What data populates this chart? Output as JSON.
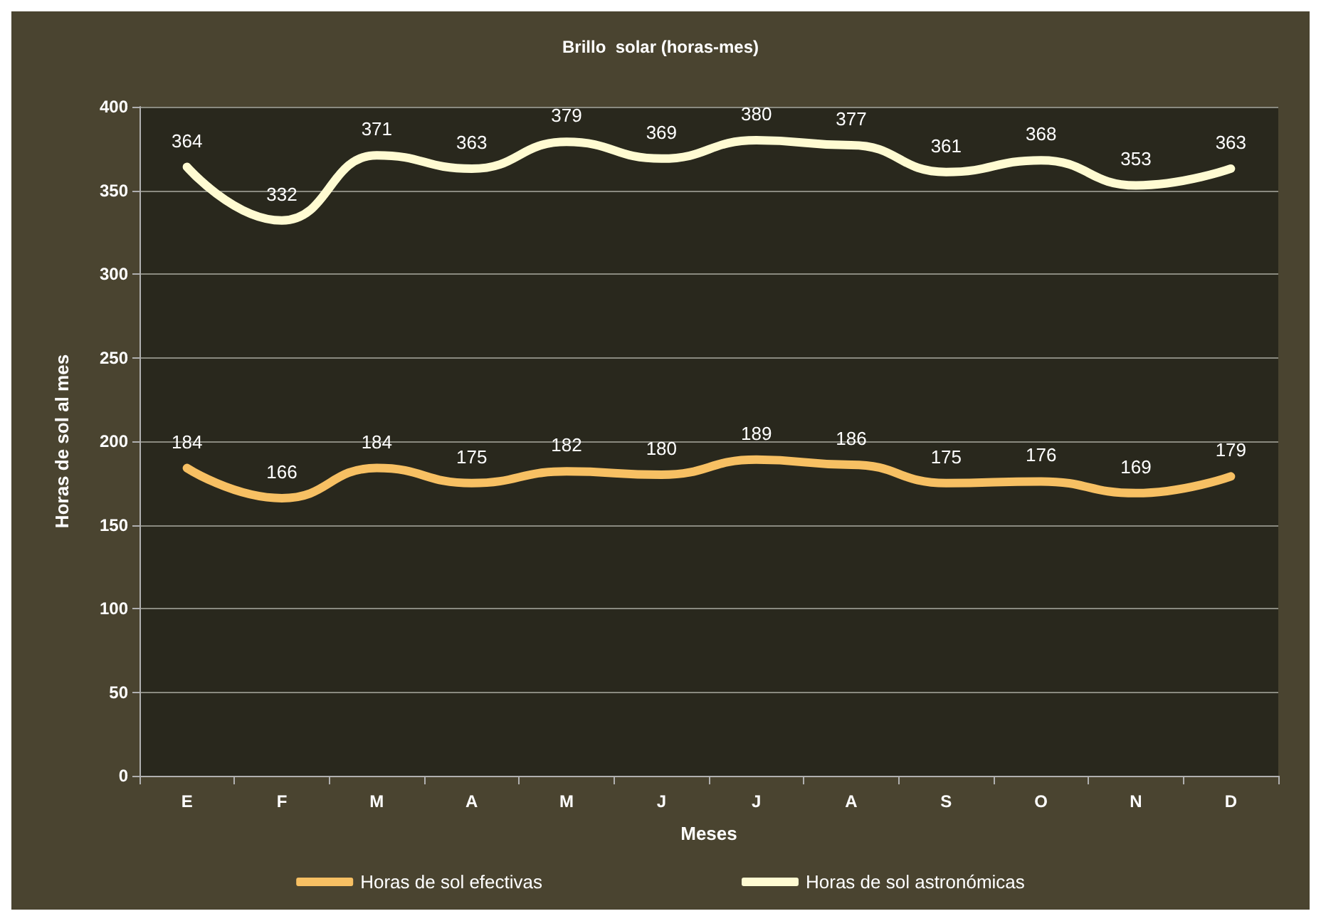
{
  "chart_data": {
    "type": "line",
    "title": "Brillo  solar (horas-mes)",
    "xlabel": "Meses",
    "ylabel": "Horas de sol al mes",
    "categories": [
      "E",
      "F",
      "M",
      "A",
      "M",
      "J",
      "J",
      "A",
      "S",
      "O",
      "N",
      "D"
    ],
    "series": [
      {
        "name": "Horas de sol efectivas",
        "color": "#f7c063",
        "values": [
          184,
          166,
          184,
          175,
          182,
          180,
          189,
          186,
          175,
          176,
          169,
          179
        ]
      },
      {
        "name": "Horas de sol astronómicas",
        "color": "#fffbd2",
        "values": [
          364,
          332,
          371,
          363,
          379,
          369,
          380,
          377,
          361,
          368,
          353,
          363
        ]
      }
    ],
    "ylim": [
      0,
      400
    ],
    "yticks": [
      0,
      50,
      100,
      150,
      200,
      250,
      300,
      350,
      400
    ],
    "grid": "y",
    "legend": "bottom",
    "data_labels": true,
    "marker": "none",
    "line_style": "solid"
  }
}
